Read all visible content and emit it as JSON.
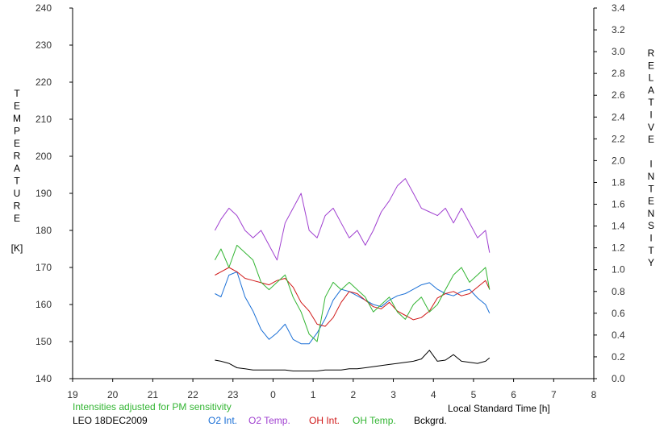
{
  "chart_data": {
    "type": "line",
    "xlabel": "Local Standard Time [h]",
    "ylabel_left": "TEMPERATURE",
    "ylabel_left_unit": "[K]",
    "ylabel_right": "RELATIVE INTENSITY",
    "x_ticks": [
      "19",
      "20",
      "21",
      "22",
      "23",
      "0",
      "1",
      "2",
      "3",
      "4",
      "5",
      "6",
      "7",
      "8"
    ],
    "x_range": [
      19,
      32
    ],
    "ylim_left": [
      140,
      240
    ],
    "ylim_right": [
      0.0,
      3.4
    ],
    "y_ticks_left": [
      "140",
      "150",
      "160",
      "170",
      "180",
      "190",
      "200",
      "210",
      "220",
      "230",
      "240"
    ],
    "y_ticks_right": [
      "0.0",
      "0.2",
      "0.4",
      "0.6",
      "0.8",
      "1.0",
      "1.2",
      "1.4",
      "1.6",
      "1.8",
      "2.0",
      "2.2",
      "2.4",
      "2.6",
      "2.8",
      "3.0",
      "3.2",
      "3.4"
    ],
    "grid": false,
    "annotation": "Intensities adjusted for PM sensitivity",
    "station_label": "LEO 18DEC2009",
    "series": [
      {
        "name": "O2 Int.",
        "color": "#1a6fd6",
        "axis": "right",
        "x": [
          22.55,
          22.7,
          22.9,
          23.1,
          23.3,
          23.5,
          23.7,
          23.9,
          24.1,
          24.3,
          24.5,
          24.7,
          24.9,
          25.1,
          25.3,
          25.5,
          25.7,
          25.9,
          26.1,
          26.3,
          26.5,
          26.7,
          26.9,
          27.1,
          27.3,
          27.5,
          27.7,
          27.9,
          28.1,
          28.3,
          28.5,
          28.7,
          28.9,
          29.1,
          29.3,
          29.4
        ],
        "y": [
          0.78,
          0.75,
          0.95,
          0.98,
          0.75,
          0.62,
          0.45,
          0.36,
          0.42,
          0.5,
          0.36,
          0.32,
          0.32,
          0.42,
          0.55,
          0.72,
          0.82,
          0.8,
          0.76,
          0.72,
          0.68,
          0.66,
          0.72,
          0.76,
          0.78,
          0.82,
          0.86,
          0.88,
          0.82,
          0.78,
          0.76,
          0.8,
          0.82,
          0.74,
          0.68,
          0.6
        ]
      },
      {
        "name": "O2 Temp.",
        "color": "#a040d0",
        "axis": "left",
        "x": [
          22.55,
          22.7,
          22.9,
          23.1,
          23.3,
          23.5,
          23.7,
          23.9,
          24.1,
          24.3,
          24.5,
          24.7,
          24.9,
          25.1,
          25.3,
          25.5,
          25.7,
          25.9,
          26.1,
          26.3,
          26.5,
          26.7,
          26.9,
          27.1,
          27.3,
          27.5,
          27.7,
          27.9,
          28.1,
          28.3,
          28.5,
          28.7,
          28.9,
          29.1,
          29.3,
          29.4
        ],
        "y": [
          180,
          183,
          186,
          184,
          180,
          178,
          180,
          176,
          172,
          182,
          186,
          190,
          180,
          178,
          184,
          186,
          182,
          178,
          180,
          176,
          180,
          185,
          188,
          192,
          194,
          190,
          186,
          185,
          184,
          186,
          182,
          186,
          182,
          178,
          180,
          174
        ]
      },
      {
        "name": "OH Int.",
        "color": "#d01818",
        "axis": "right",
        "x": [
          22.55,
          22.7,
          22.9,
          23.1,
          23.3,
          23.5,
          23.7,
          23.9,
          24.1,
          24.3,
          24.5,
          24.7,
          24.9,
          25.1,
          25.3,
          25.5,
          25.7,
          25.9,
          26.1,
          26.3,
          26.5,
          26.7,
          26.9,
          27.1,
          27.3,
          27.5,
          27.7,
          27.9,
          28.1,
          28.3,
          28.5,
          28.7,
          28.9,
          29.1,
          29.3,
          29.4
        ],
        "y": [
          0.95,
          0.98,
          1.02,
          0.98,
          0.92,
          0.9,
          0.88,
          0.86,
          0.9,
          0.92,
          0.84,
          0.7,
          0.62,
          0.5,
          0.48,
          0.56,
          0.7,
          0.8,
          0.78,
          0.72,
          0.66,
          0.64,
          0.7,
          0.62,
          0.58,
          0.54,
          0.56,
          0.62,
          0.74,
          0.78,
          0.8,
          0.76,
          0.78,
          0.84,
          0.9,
          0.82
        ]
      },
      {
        "name": "OH Temp.",
        "color": "#33b533",
        "axis": "left",
        "x": [
          22.55,
          22.7,
          22.9,
          23.1,
          23.3,
          23.5,
          23.7,
          23.9,
          24.1,
          24.3,
          24.5,
          24.7,
          24.9,
          25.1,
          25.3,
          25.5,
          25.7,
          25.9,
          26.1,
          26.3,
          26.5,
          26.7,
          26.9,
          27.1,
          27.3,
          27.5,
          27.7,
          27.9,
          28.1,
          28.3,
          28.5,
          28.7,
          28.9,
          29.1,
          29.3,
          29.4
        ],
        "y": [
          172,
          175,
          170,
          176,
          174,
          172,
          166,
          164,
          166,
          168,
          162,
          158,
          152,
          150,
          162,
          166,
          164,
          166,
          164,
          162,
          158,
          160,
          162,
          158,
          156,
          160,
          162,
          158,
          160,
          164,
          168,
          170,
          166,
          168,
          170,
          164
        ]
      },
      {
        "name": "Bckgrd.",
        "color": "#000000",
        "axis": "right",
        "x": [
          22.55,
          22.7,
          22.9,
          23.1,
          23.3,
          23.5,
          23.7,
          23.9,
          24.1,
          24.3,
          24.5,
          24.7,
          24.9,
          25.1,
          25.3,
          25.5,
          25.7,
          25.9,
          26.1,
          26.3,
          26.5,
          26.7,
          26.9,
          27.1,
          27.3,
          27.5,
          27.7,
          27.9,
          28.1,
          28.3,
          28.5,
          28.7,
          28.9,
          29.1,
          29.3,
          29.4
        ],
        "y": [
          0.17,
          0.16,
          0.14,
          0.1,
          0.09,
          0.08,
          0.08,
          0.08,
          0.08,
          0.08,
          0.07,
          0.07,
          0.07,
          0.07,
          0.08,
          0.08,
          0.08,
          0.09,
          0.09,
          0.1,
          0.11,
          0.12,
          0.13,
          0.14,
          0.15,
          0.16,
          0.18,
          0.26,
          0.16,
          0.17,
          0.22,
          0.16,
          0.15,
          0.14,
          0.16,
          0.19
        ]
      }
    ]
  }
}
